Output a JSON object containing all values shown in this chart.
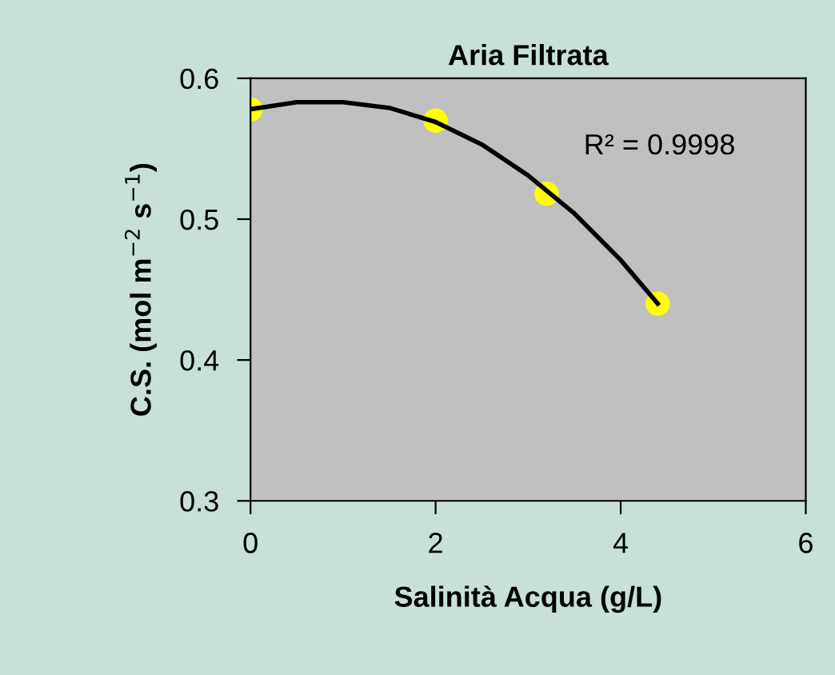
{
  "chart_data": {
    "type": "scatter",
    "title": "Aria Filtrata",
    "xlabel": "Salinità Acqua (g/L)",
    "ylabel": "C.S. (mol m$^{−2}$ s$^{−1}$)",
    "series": [
      {
        "color": "#ffff00",
        "marker": "circle",
        "x": [
          0,
          2,
          3.2,
          4.4
        ],
        "values": [
          0.578,
          0.57,
          0.518,
          0.44
        ]
      },
      {
        "type": "line",
        "color": "#000000",
        "x": [
          0,
          0.5,
          0.8,
          1,
          1.5,
          2,
          2.5,
          3,
          3.5,
          4,
          4.4
        ],
        "values": [
          0.578,
          0.583,
          0.583,
          0.583,
          0.579,
          0.569,
          0.553,
          0.531,
          0.504,
          0.471,
          0.44
        ]
      }
    ],
    "annotations": [
      "R² = 0.9998"
    ],
    "xlim": [
      0,
      6
    ],
    "ylim": [
      0.3,
      0.6
    ],
    "xticks": [
      0,
      2,
      4,
      6
    ],
    "yticks": [
      0.3,
      0.4,
      0.5,
      0.6
    ],
    "grid": false,
    "legend": false
  }
}
